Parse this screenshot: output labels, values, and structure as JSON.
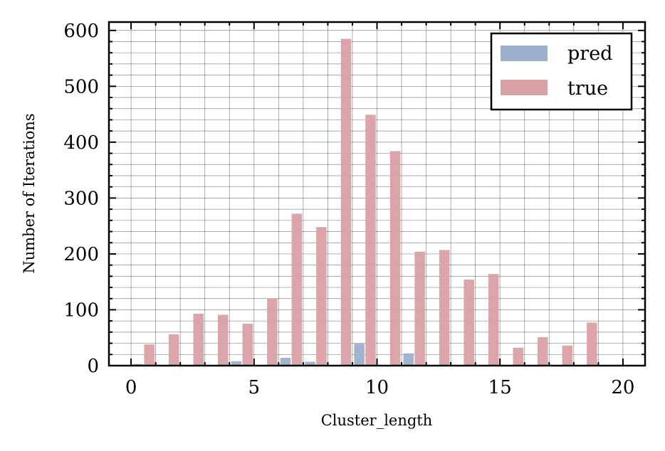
{
  "chart_data": {
    "type": "bar",
    "xlabel": "Cluster_length",
    "ylabel": "Number of Iterations",
    "xlim": [
      -0.9,
      20.9
    ],
    "ylim": [
      0,
      615
    ],
    "xticks": [
      0,
      5,
      10,
      15,
      20
    ],
    "yticks": [
      0,
      100,
      200,
      300,
      400,
      500,
      600
    ],
    "grid": true,
    "legend_position": "top-right",
    "series": [
      {
        "name": "pred",
        "color": "#9db0cc",
        "x": [
          1,
          2,
          3,
          4,
          5,
          6,
          7,
          8,
          9,
          10,
          11,
          12,
          13,
          14,
          15,
          16,
          17,
          18,
          19,
          20
        ],
        "values": [
          3,
          0,
          0,
          0,
          8,
          0,
          14,
          7,
          0,
          40,
          0,
          22,
          0,
          0,
          0,
          0,
          0,
          0,
          0,
          0
        ]
      },
      {
        "name": "true",
        "color": "#d9a0a4",
        "x": [
          1,
          2,
          3,
          4,
          5,
          6,
          7,
          8,
          9,
          10,
          11,
          12,
          13,
          14,
          15,
          16,
          17,
          18,
          19,
          20
        ],
        "values": [
          38,
          56,
          93,
          91,
          75,
          120,
          272,
          248,
          585,
          449,
          384,
          204,
          207,
          154,
          164,
          32,
          51,
          36,
          77,
          0
        ]
      }
    ]
  }
}
